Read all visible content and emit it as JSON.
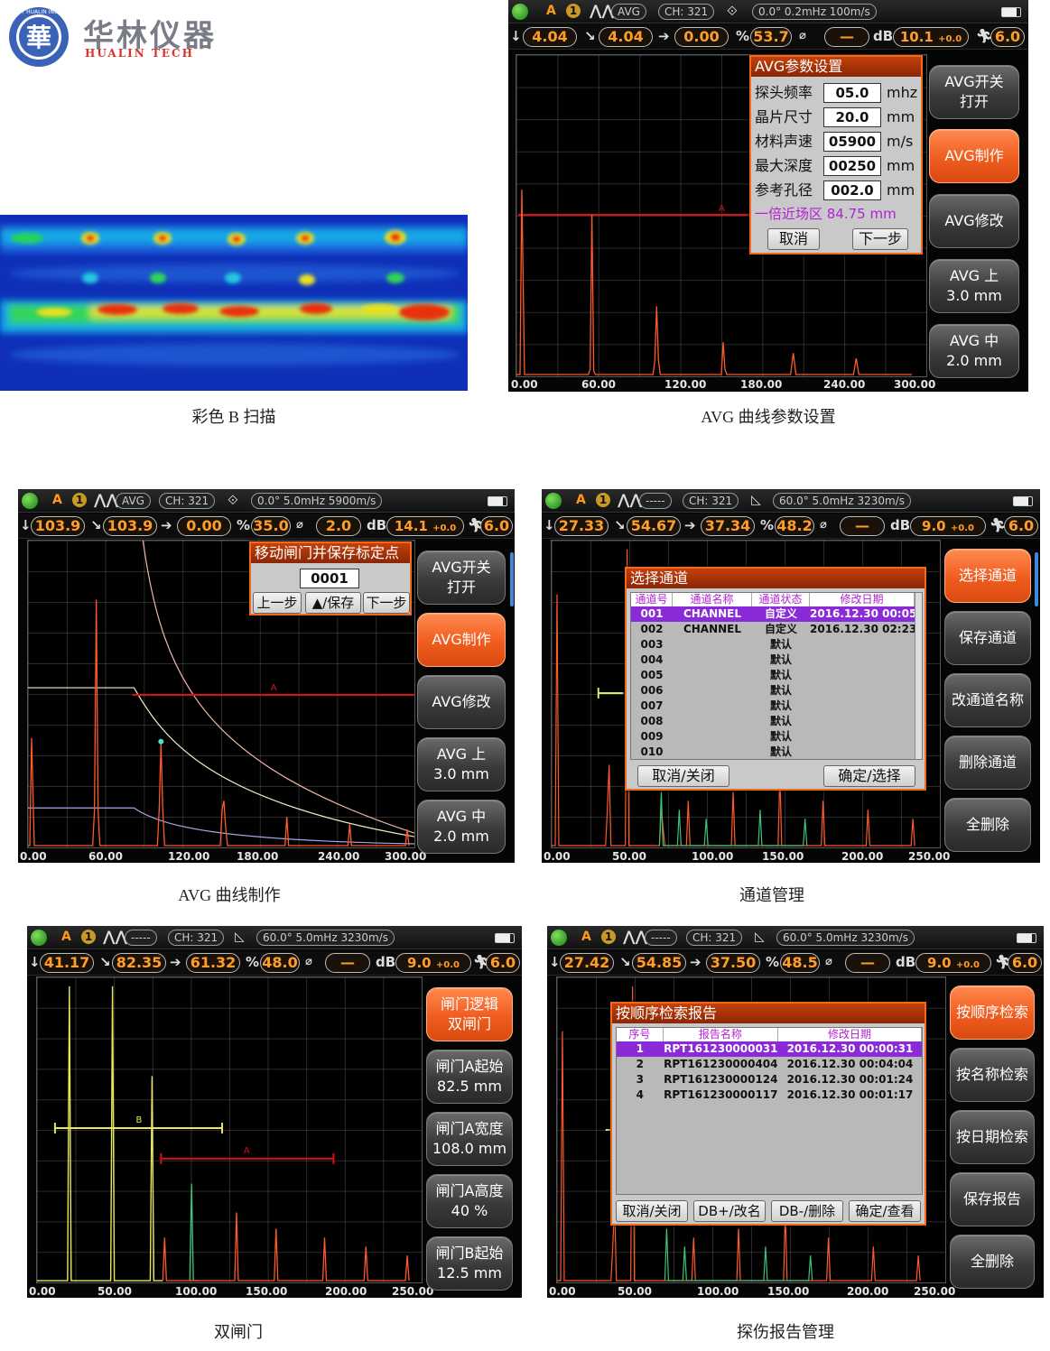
{
  "logo": {
    "cn": "华林仪器",
    "en": "HUALIN TECH",
    "seal_char": "華",
    "seal_text": "NDT  HUALIN INSTR"
  },
  "captions": {
    "bscan": "彩色 B 扫描",
    "avg_params": "AVG 曲线参数设置",
    "avg_make": "AVG 曲线制作",
    "channels": "通道管理",
    "dual_gate": "双闸门",
    "reports": "探伤报告管理"
  },
  "colors": {
    "accent": "#f05c1e",
    "measure": "#ff9d2a",
    "gate_a": "#e01010",
    "gate_b": "#e8e860",
    "echo": "#ff5a2a",
    "highlight": "#8a2ad8"
  },
  "screen_avg_params": {
    "status": {
      "mode": "A",
      "num": "1",
      "avg": "AVG",
      "ch": "CH: 321",
      "info": "0.0°  0.2mHz  100m/s"
    },
    "measure": {
      "v1": "4.04",
      "v2": "4.04",
      "v3": "0.00",
      "pct": "53.7",
      "dia": "—",
      "db": "10.1",
      "db_add": "+0.0",
      "step": "6.0",
      "unit": "mm",
      "db_label": "dB"
    },
    "x_ticks": [
      "0.00",
      "60.00",
      "120.00",
      "180.00",
      "240.00",
      "300.00"
    ],
    "gate_label": "A",
    "dialog": {
      "title": "AVG参数设置",
      "rows": [
        {
          "label": "探头频率",
          "value": "05.0",
          "unit": "mhz"
        },
        {
          "label": "晶片尺寸",
          "value": "20.0",
          "unit": "mm"
        },
        {
          "label": "材料声速",
          "value": "05900",
          "unit": "m/s"
        },
        {
          "label": "最大深度",
          "value": "00250",
          "unit": "mm"
        },
        {
          "label": "参考孔径",
          "value": "002.0",
          "unit": "mm"
        }
      ],
      "nearfield": "一倍近场区 84.75 mm",
      "cancel": "取消",
      "next": "下一步"
    },
    "side": [
      {
        "l1": "AVG开关",
        "l2": "打开",
        "active": false
      },
      {
        "l1": "AVG制作",
        "l2": "",
        "active": true
      },
      {
        "l1": "AVG修改",
        "l2": "",
        "active": false
      },
      {
        "l1": "AVG 上",
        "l2": "3.0 mm",
        "active": false
      },
      {
        "l1": "AVG 中",
        "l2": "2.0 mm",
        "active": false
      }
    ]
  },
  "screen_avg_make": {
    "status": {
      "mode": "A",
      "num": "1",
      "avg": "AVG",
      "ch": "CH: 321",
      "info": "0.0°  5.0mHz  5900m/s"
    },
    "measure": {
      "v1": "103.9",
      "v2": "103.9",
      "v3": "0.00",
      "pct": "35.0",
      "dia": "2.0",
      "db": "14.1",
      "db_add": "+0.0",
      "step": "6.0",
      "unit": "mm",
      "db_label": "dB"
    },
    "x_ticks": [
      "0.00",
      "60.00",
      "120.00",
      "180.00",
      "240.00",
      "300.00"
    ],
    "gate_label": "A",
    "dialog": {
      "title": "移动闸门并保存标定点",
      "value": "0001",
      "prev": "上一步",
      "save": "▲/保存",
      "next": "下一步"
    },
    "side": [
      {
        "l1": "AVG开关",
        "l2": "打开",
        "active": false
      },
      {
        "l1": "AVG制作",
        "l2": "",
        "active": true
      },
      {
        "l1": "AVG修改",
        "l2": "",
        "active": false
      },
      {
        "l1": "AVG 上",
        "l2": "3.0 mm",
        "active": false
      },
      {
        "l1": "AVG 中",
        "l2": "2.0 mm",
        "active": false
      }
    ]
  },
  "screen_channels": {
    "status": {
      "mode": "A",
      "num": "1",
      "avg": "-----",
      "ch": "CH: 321",
      "info": "60.0°  5.0mHz  3230m/s"
    },
    "measure": {
      "v1": "27.33",
      "v2": "54.67",
      "v3": "37.34",
      "pct": "48.2",
      "dia": "—",
      "db": "9.0",
      "db_add": "+0.0",
      "step": "6.0",
      "unit": "mm",
      "db_label": "dB"
    },
    "x_ticks": [
      "0.00",
      "50.00",
      "100.00",
      "150.00",
      "200.00",
      "250.00"
    ],
    "dialog": {
      "title": "选择通道",
      "headers": [
        "通道号",
        "通道名称",
        "通道状态",
        "修改日期"
      ],
      "rows": [
        {
          "no": "001",
          "name": "CHANNEL",
          "status": "自定义",
          "date": "2016.12.30  00:05",
          "selected": true
        },
        {
          "no": "002",
          "name": "CHANNEL",
          "status": "自定义",
          "date": "2016.12.30  02:23",
          "selected": false
        },
        {
          "no": "003",
          "name": "",
          "status": "默认",
          "date": "",
          "selected": false
        },
        {
          "no": "004",
          "name": "",
          "status": "默认",
          "date": "",
          "selected": false
        },
        {
          "no": "005",
          "name": "",
          "status": "默认",
          "date": "",
          "selected": false
        },
        {
          "no": "006",
          "name": "",
          "status": "默认",
          "date": "",
          "selected": false
        },
        {
          "no": "007",
          "name": "",
          "status": "默认",
          "date": "",
          "selected": false
        },
        {
          "no": "008",
          "name": "",
          "status": "默认",
          "date": "",
          "selected": false
        },
        {
          "no": "009",
          "name": "",
          "status": "默认",
          "date": "",
          "selected": false
        },
        {
          "no": "010",
          "name": "",
          "status": "默认",
          "date": "",
          "selected": false
        }
      ],
      "cancel": "取消/关闭",
      "ok": "确定/选择"
    },
    "side": [
      {
        "l1": "选择通道",
        "l2": "",
        "active": true
      },
      {
        "l1": "保存通道",
        "l2": "",
        "active": false
      },
      {
        "l1": "改通道名称",
        "l2": "",
        "active": false
      },
      {
        "l1": "删除通道",
        "l2": "",
        "active": false
      },
      {
        "l1": "全删除",
        "l2": "",
        "active": false
      }
    ]
  },
  "screen_dual_gate": {
    "status": {
      "mode": "A",
      "num": "1",
      "avg": "-----",
      "ch": "CH: 321",
      "info": "60.0°  5.0mHz  3230m/s"
    },
    "measure": {
      "v1": "41.17",
      "v2": "82.35",
      "v3": "61.32",
      "pct": "48.0",
      "dia": "—",
      "db": "9.0",
      "db_add": "+0.0",
      "step": "6.0",
      "unit": "mm",
      "db_label": "dB"
    },
    "x_ticks": [
      "0.00",
      "50.00",
      "100.00",
      "150.00",
      "200.00",
      "250.00"
    ],
    "gate_a_label": "A",
    "gate_b_label": "B",
    "side": [
      {
        "l1": "闸门逻辑",
        "l2": "双闸门",
        "active": true
      },
      {
        "l1": "闸门A起始",
        "l2": "82.5 mm",
        "active": false
      },
      {
        "l1": "闸门A宽度",
        "l2": "108.0 mm",
        "active": false
      },
      {
        "l1": "闸门A高度",
        "l2": "40 %",
        "active": false
      },
      {
        "l1": "闸门B起始",
        "l2": "12.5 mm",
        "active": false
      }
    ]
  },
  "screen_reports": {
    "status": {
      "mode": "A",
      "num": "1",
      "avg": "-----",
      "ch": "CH: 321",
      "info": "60.0°  5.0mHz  3230m/s"
    },
    "measure": {
      "v1": "27.42",
      "v2": "54.85",
      "v3": "37.50",
      "pct": "48.5",
      "dia": "—",
      "db": "9.0",
      "db_add": "+0.0",
      "step": "6.0",
      "unit": "mm",
      "db_label": "dB"
    },
    "x_ticks": [
      "0.00",
      "50.00",
      "100.00",
      "150.00",
      "200.00",
      "250.00"
    ],
    "dialog": {
      "title": "按顺序检索报告",
      "headers": [
        "序号",
        "报告名称",
        "修改日期"
      ],
      "rows": [
        {
          "no": "1",
          "name": "RPT161230000031",
          "date": "2016.12.30  00:00:31",
          "selected": true
        },
        {
          "no": "2",
          "name": "RPT161230000404",
          "date": "2016.12.30  00:04:04",
          "selected": false
        },
        {
          "no": "3",
          "name": "RPT161230000124",
          "date": "2016.12.30  00:01:24",
          "selected": false
        },
        {
          "no": "4",
          "name": "RPT161230000117",
          "date": "2016.12.30  00:01:17",
          "selected": false
        }
      ],
      "btn_cancel": "取消/关闭",
      "btn_rename": "DB+/改名",
      "btn_delete": "DB-/删除",
      "btn_view": "确定/查看"
    },
    "side": [
      {
        "l1": "按顺序检索",
        "l2": "",
        "active": true
      },
      {
        "l1": "按名称检索",
        "l2": "",
        "active": false
      },
      {
        "l1": "按日期检索",
        "l2": "",
        "active": false
      },
      {
        "l1": "保存报告",
        "l2": "",
        "active": false
      },
      {
        "l1": "全删除",
        "l2": "",
        "active": false
      }
    ]
  }
}
